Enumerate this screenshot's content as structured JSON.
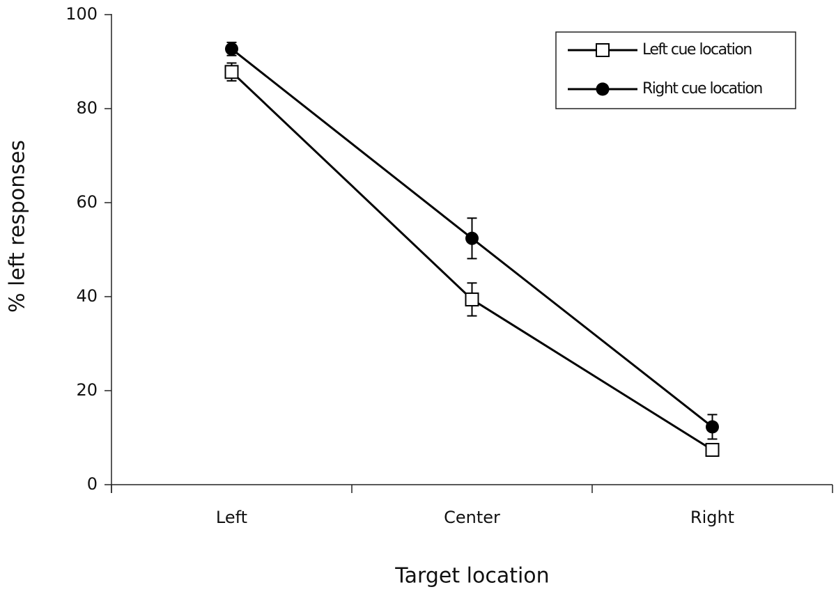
{
  "chart_data": {
    "type": "line",
    "x_label": "Target location",
    "y_label": "% left responses",
    "categories": [
      "Left",
      "Center",
      "Right"
    ],
    "series": [
      {
        "name": "Left cue location",
        "color": "#000000",
        "marker": "square",
        "values": [
          87.8,
          39.4,
          7.4
        ],
        "errors": [
          1.9,
          3.5,
          1.2
        ]
      },
      {
        "name": "Right cue location",
        "color": "#000000",
        "marker": "circle",
        "values": [
          92.7,
          52.4,
          12.3
        ],
        "errors": [
          1.4,
          4.3,
          2.6
        ]
      }
    ],
    "ylim": [
      0,
      100
    ],
    "yticks": [
      0,
      20,
      40,
      60,
      80,
      100
    ],
    "legend": "top-right"
  }
}
